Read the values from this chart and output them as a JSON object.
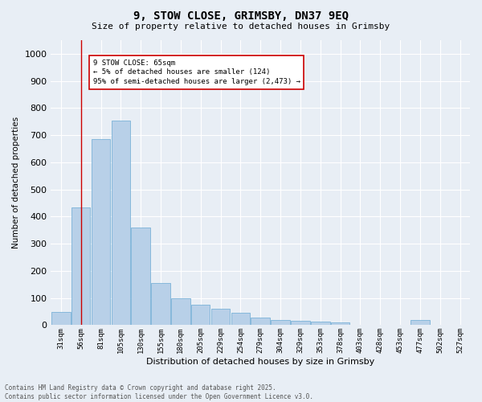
{
  "title": "9, STOW CLOSE, GRIMSBY, DN37 9EQ",
  "subtitle": "Size of property relative to detached houses in Grimsby",
  "xlabel": "Distribution of detached houses by size in Grimsby",
  "ylabel": "Number of detached properties",
  "categories": [
    "31sqm",
    "56sqm",
    "81sqm",
    "105sqm",
    "130sqm",
    "155sqm",
    "180sqm",
    "205sqm",
    "229sqm",
    "254sqm",
    "279sqm",
    "304sqm",
    "329sqm",
    "353sqm",
    "378sqm",
    "403sqm",
    "428sqm",
    "453sqm",
    "477sqm",
    "502sqm",
    "527sqm"
  ],
  "values": [
    50,
    435,
    685,
    755,
    360,
    155,
    100,
    75,
    60,
    45,
    28,
    20,
    15,
    12,
    10,
    0,
    0,
    0,
    20,
    0,
    0
  ],
  "bar_color": "#b8d0e8",
  "bar_edgecolor": "#6aaad4",
  "vline_x": 1,
  "vline_color": "#cc0000",
  "ylim": [
    0,
    1050
  ],
  "yticks": [
    0,
    100,
    200,
    300,
    400,
    500,
    600,
    700,
    800,
    900,
    1000
  ],
  "annotation_text": "9 STOW CLOSE: 65sqm\n← 5% of detached houses are smaller (124)\n95% of semi-detached houses are larger (2,473) →",
  "annotation_box_facecolor": "#ffffff",
  "annotation_box_edgecolor": "#cc0000",
  "bg_color": "#e8eef5",
  "plot_bg_color": "#e8eef5",
  "grid_color": "#ffffff",
  "footer_line1": "Contains HM Land Registry data © Crown copyright and database right 2025.",
  "footer_line2": "Contains public sector information licensed under the Open Government Licence v3.0."
}
